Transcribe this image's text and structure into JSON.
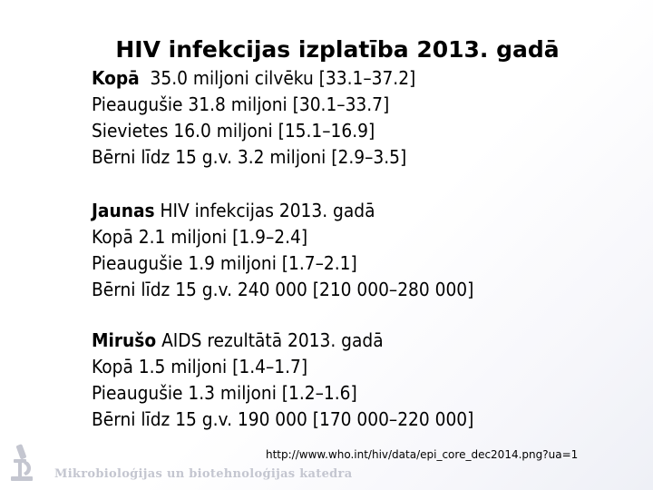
{
  "slide": {
    "title": "HIV infekcijas izplatība 2013. gadā",
    "section_totals": {
      "lead": "Kopā",
      "lead_rest": "  35.0 miljoni cilvēku [33.1–37.2]",
      "lines": [
        "Pieaugušie 31.8 miljoni [30.1–33.7]",
        "Sievietes 16.0 miljoni [15.1–16.9]",
        "Bērni līdz 15 g.v. 3.2 miljoni [2.9–3.5]"
      ]
    },
    "section_new": {
      "lead": "Jaunas",
      "lead_rest": " HIV infekcijas 2013. gadā",
      "lines": [
        "Kopā 2.1 miljoni [1.9–2.4]",
        "Pieaugušie 1.9 miljoni [1.7–2.1]",
        "Bērni līdz 15 g.v. 240 000 [210 000–280 000]"
      ]
    },
    "section_deaths": {
      "lead": "Mirušo",
      "lead_rest": " AIDS rezultātā 2013. gadā",
      "lines": [
        "Kopā 1.5 miljoni [1.4–1.7]",
        "Pieaugušie 1.3 miljoni [1.2–1.6]",
        "Bērni līdz 15 g.v. 190 000 [170 000–220 000]"
      ]
    },
    "source_url": "http://www.who.int/hiv/data/epi_core_dec2014.png?ua=1",
    "footer_logo_text": "Mikrobioloģijas un biotehnoloģijas katedra",
    "logo_color": "#c4c6d0"
  }
}
